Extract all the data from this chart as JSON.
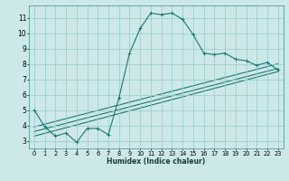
{
  "xlabel": "Humidex (Indice chaleur)",
  "bg_color": "#cce8e8",
  "grid_color": "#9ecece",
  "line_color": "#1a7870",
  "xlim": [
    -0.5,
    23.5
  ],
  "ylim": [
    2.5,
    11.8
  ],
  "xticks": [
    0,
    1,
    2,
    3,
    4,
    5,
    6,
    7,
    8,
    9,
    10,
    11,
    12,
    13,
    14,
    15,
    16,
    17,
    18,
    19,
    20,
    21,
    22,
    23
  ],
  "yticks": [
    3,
    4,
    5,
    6,
    7,
    8,
    9,
    10,
    11
  ],
  "main_x": [
    0,
    1,
    2,
    3,
    4,
    5,
    6,
    7,
    8,
    9,
    10,
    11,
    12,
    13,
    14,
    15,
    16,
    17,
    18,
    19,
    20,
    21,
    22,
    23
  ],
  "main_y": [
    5.0,
    3.9,
    3.3,
    3.5,
    2.9,
    3.8,
    3.8,
    3.4,
    5.8,
    8.7,
    10.3,
    11.3,
    11.2,
    11.3,
    10.9,
    9.9,
    8.7,
    8.6,
    8.7,
    8.3,
    8.2,
    7.9,
    8.1,
    7.6
  ],
  "line2_x": [
    0,
    23
  ],
  "line2_y": [
    3.6,
    7.7
  ],
  "line3_x": [
    0,
    23
  ],
  "line3_y": [
    3.3,
    7.5
  ],
  "line4_x": [
    0,
    23
  ],
  "line4_y": [
    3.9,
    8.0
  ],
  "xlabel_fontsize": 5.5,
  "tick_fontsize": 4.8,
  "ytick_fontsize": 5.5,
  "linewidth": 0.8,
  "marker_size": 2.5
}
